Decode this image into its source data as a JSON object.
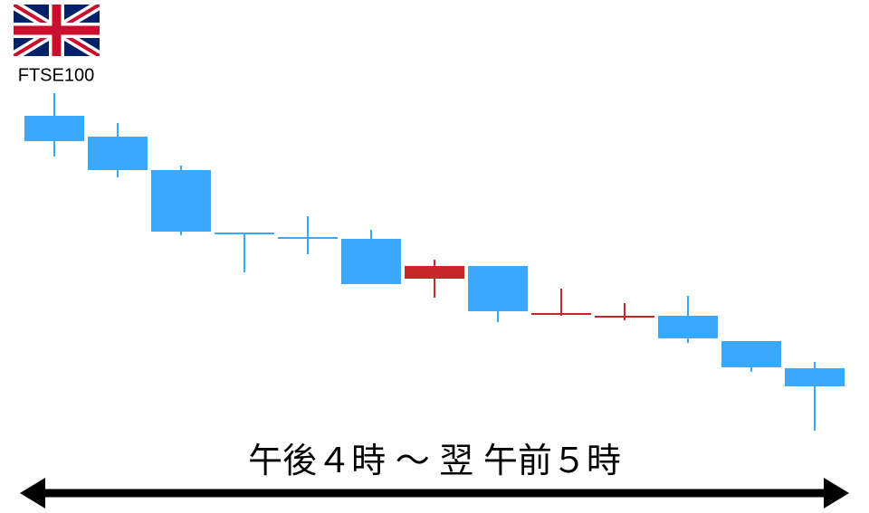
{
  "chart_data": {
    "type": "candlestick",
    "label": "FTSE100",
    "annotation": "午後４時 ～ 翌 午前５時",
    "open": [
      352,
      329,
      292,
      223,
      218,
      216,
      172,
      186,
      133,
      130,
      131,
      103,
      73
    ],
    "high": [
      377,
      344,
      297,
      223,
      241,
      226,
      193,
      186,
      161,
      145,
      153,
      103,
      80
    ],
    "low": [
      307,
      284,
      220,
      179,
      199,
      166,
      151,
      124,
      131,
      126,
      101,
      69,
      4
    ],
    "close": [
      324,
      292,
      224,
      222,
      217,
      166,
      186,
      136,
      134,
      131,
      106,
      74,
      53
    ],
    "up_color": "#c62828",
    "down_color": "#3aa8ff",
    "ylim": [
      0,
      400
    ]
  }
}
